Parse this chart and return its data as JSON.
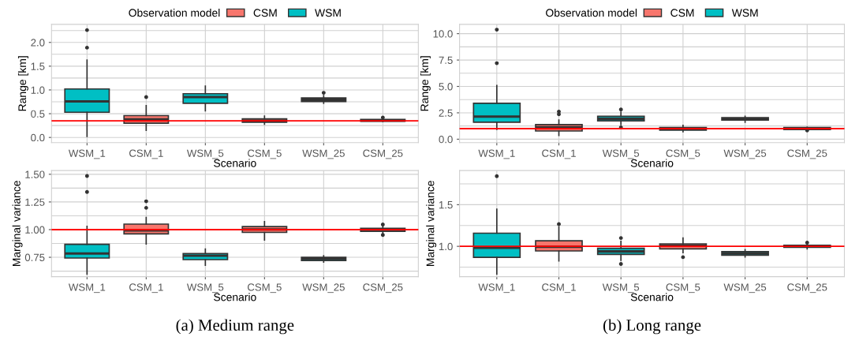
{
  "chart_data": [
    {
      "type": "box",
      "xlabel": "Scenario",
      "ylabel": "Range [km]",
      "legend_title": "Observation model",
      "legend": "top",
      "grid": true,
      "categories": [
        "WSM_1",
        "CSM_1",
        "WSM_5",
        "CSM_5",
        "WSM_25",
        "CSM_25"
      ],
      "ylim": [
        -0.11,
        2.38
      ],
      "yticks": [
        {
          "value": 0,
          "label": "0.0"
        },
        0.5,
        {
          "value": 1,
          "label": "1.0"
        },
        1.5,
        {
          "value": 2,
          "label": "2.0"
        }
      ],
      "ref_lines": [
        {
          "axis": "y",
          "value": 0.35,
          "color": "#ff0000"
        }
      ],
      "series": [
        {
          "name": "CSM",
          "color": "#f8766d",
          "boxes": [
            null,
            {
              "low": 0.15,
              "q1": 0.3,
              "median": 0.38,
              "q3": 0.46,
              "high": 0.67,
              "outliers": [
                0.85
              ]
            },
            null,
            {
              "low": 0.28,
              "q1": 0.32,
              "median": 0.35,
              "q3": 0.39,
              "high": 0.45
            },
            null,
            {
              "low": 0.335,
              "q1": 0.34,
              "median": 0.355,
              "q3": 0.38,
              "high": 0.41,
              "outliers": [
                0.42
              ]
            }
          ]
        },
        {
          "name": "WSM",
          "color": "#00bfc4",
          "boxes": [
            {
              "low": 0.02,
              "q1": 0.53,
              "median": 0.76,
              "q3": 1.02,
              "high": 1.63,
              "outliers": [
                2.26,
                1.89
              ]
            },
            null,
            {
              "low": 0.56,
              "q1": 0.72,
              "median": 0.85,
              "q3": 0.92,
              "high": 1.08
            },
            null,
            {
              "low": 0.72,
              "q1": 0.755,
              "median": 0.79,
              "q3": 0.83,
              "high": 0.88,
              "outliers": [
                0.94
              ]
            },
            null
          ]
        }
      ]
    },
    {
      "type": "box",
      "xlabel": "Scenario",
      "ylabel": "Range [km]",
      "legend_title": "Observation model",
      "legend": "top",
      "grid": true,
      "categories": [
        "WSM_1",
        "CSM_1",
        "WSM_5",
        "CSM_5",
        "WSM_25",
        "CSM_25"
      ],
      "ylim": [
        -0.33,
        10.88
      ],
      "yticks": [
        {
          "value": 0,
          "label": "0.0"
        },
        2.5,
        {
          "value": 5,
          "label": "5.0"
        },
        7.5,
        {
          "value": 10,
          "label": "10.0"
        }
      ],
      "ref_lines": [
        {
          "axis": "y",
          "value": 1.0,
          "color": "#ff0000"
        }
      ],
      "series": [
        {
          "name": "CSM",
          "color": "#f8766d",
          "boxes": [
            null,
            {
              "low": 0.35,
              "q1": 0.78,
              "median": 1.13,
              "q3": 1.39,
              "high": 1.81,
              "outliers": [
                2.62,
                2.37
              ]
            },
            null,
            {
              "low": 0.7,
              "q1": 0.86,
              "median": 0.98,
              "q3": 1.11,
              "high": 1.31
            },
            null,
            {
              "low": 0.81,
              "q1": 0.91,
              "median": 1.01,
              "q3": 1.11,
              "high": 1.135,
              "outliers": [
                0.83
              ]
            }
          ]
        },
        {
          "name": "WSM",
          "color": "#00bfc4",
          "boxes": [
            {
              "low": 0.93,
              "q1": 1.61,
              "median": 2.14,
              "q3": 3.4,
              "high": 5.09,
              "outliers": [
                10.38,
                7.2
              ]
            },
            null,
            {
              "low": 1.39,
              "q1": 1.74,
              "median": 1.94,
              "q3": 2.17,
              "high": 2.57,
              "outliers": [
                2.82,
                1.11
              ]
            },
            null,
            {
              "low": 1.61,
              "q1": 1.81,
              "median": 1.91,
              "q3": 2.04,
              "high": 2.17
            },
            null
          ]
        }
      ]
    },
    {
      "type": "box",
      "xlabel": "Scenario",
      "ylabel": "Marginal variance",
      "grid": true,
      "categories": [
        "WSM_1",
        "CSM_1",
        "WSM_5",
        "CSM_5",
        "WSM_25",
        "CSM_25"
      ],
      "ylim": [
        0.575,
        1.534
      ],
      "yticks": [
        0.75,
        {
          "value": 1,
          "label": "1.00"
        },
        1.25,
        {
          "value": 1.5,
          "label": "1.50"
        }
      ],
      "ref_lines": [
        {
          "axis": "y",
          "value": 1.0,
          "color": "#ff0000"
        }
      ],
      "colors": [
        "#00bfc4",
        "#f8766d",
        "#00bfc4",
        "#f8766d",
        "#00bfc4",
        "#f8766d"
      ],
      "boxes": [
        {
          "low": 0.597,
          "q1": 0.743,
          "median": 0.784,
          "q3": 0.867,
          "high": 1.03,
          "outliers": [
            1.485,
            1.34
          ]
        },
        {
          "low": 0.87,
          "q1": 0.961,
          "median": 0.993,
          "q3": 1.05,
          "high": 1.11,
          "outliers": [
            1.256,
            1.197
          ]
        },
        {
          "low": 0.677,
          "q1": 0.729,
          "median": 0.764,
          "q3": 0.784,
          "high": 0.825
        },
        {
          "low": 0.906,
          "q1": 0.975,
          "median": 1.002,
          "q3": 1.027,
          "high": 1.073
        },
        {
          "low": 0.707,
          "q1": 0.72,
          "median": 0.734,
          "q3": 0.75,
          "high": 0.764
        },
        {
          "low": 0.963,
          "q1": 0.984,
          "median": 0.998,
          "q3": 1.011,
          "high": 1.03,
          "outliers": [
            1.046,
            0.952
          ]
        }
      ],
      "annotations": [
        "(a) Medium range"
      ]
    },
    {
      "type": "box",
      "xlabel": "Scenario",
      "ylabel": "Marginal variance",
      "grid": true,
      "categories": [
        "WSM_1",
        "CSM_1",
        "WSM_5",
        "CSM_5",
        "WSM_25",
        "CSM_25"
      ],
      "ylim": [
        0.636,
        1.91
      ],
      "yticks": [
        {
          "value": 1,
          "label": "1.0"
        },
        1.5
      ],
      "ref_lines": [
        {
          "axis": "y",
          "value": 1.0,
          "color": "#ff0000"
        }
      ],
      "colors": [
        "#00bfc4",
        "#f8766d",
        "#00bfc4",
        "#f8766d",
        "#00bfc4",
        "#f8766d"
      ],
      "boxes": [
        {
          "low": 0.667,
          "q1": 0.867,
          "median": 0.982,
          "q3": 1.158,
          "high": 1.445,
          "outliers": [
            1.842
          ]
        },
        {
          "low": 0.824,
          "q1": 0.945,
          "median": 0.994,
          "q3": 1.067,
          "high": 1.236,
          "outliers": [
            1.267
          ]
        },
        {
          "low": 0.833,
          "q1": 0.903,
          "median": 0.939,
          "q3": 0.976,
          "high": 1.06,
          "outliers": [
            1.1,
            0.788
          ]
        },
        {
          "low": 0.924,
          "q1": 0.97,
          "median": 1.006,
          "q3": 1.03,
          "high": 1.1,
          "outliers": [
            0.87
          ]
        },
        {
          "low": 0.873,
          "q1": 0.894,
          "median": 0.915,
          "q3": 0.936,
          "high": 0.96
        },
        {
          "low": 0.97,
          "q1": 0.988,
          "median": 1.0,
          "q3": 1.012,
          "high": 1.018,
          "outliers": [
            1.045
          ]
        }
      ],
      "annotations": [
        "(b) Long range"
      ]
    }
  ]
}
